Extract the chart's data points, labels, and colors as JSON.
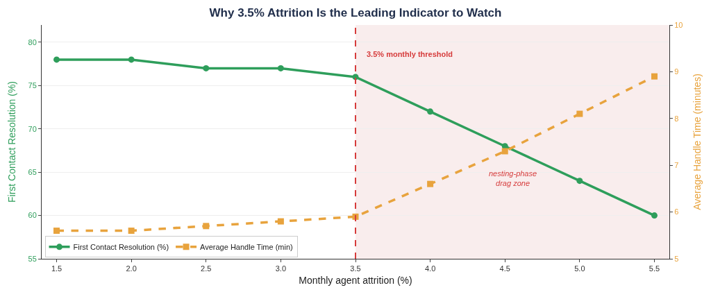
{
  "chart_data": {
    "type": "line",
    "title": "Why 3.5% Attrition Is the Leading Indicator to Watch",
    "xlabel": "Monthly agent attrition (%)",
    "ylabel": "First Contact Resolution (%)",
    "y2label": "Average Handle Time (minutes)",
    "x": [
      1.5,
      2.0,
      2.5,
      3.0,
      3.5,
      4.0,
      4.5,
      5.0,
      5.5
    ],
    "series": [
      {
        "name": "First Contact Resolution (%)",
        "color": "#2e9e5b",
        "values": [
          78,
          78,
          77,
          77,
          76,
          72,
          68,
          64,
          60
        ],
        "marker": "circle",
        "line_style": "solid"
      },
      {
        "name": "Average Handle Time (min)",
        "color": "#e8a33d",
        "values": [
          5.6,
          5.6,
          5.7,
          5.8,
          5.9,
          6.6,
          7.3,
          8.1,
          8.9
        ],
        "axis": "y2",
        "marker": "square",
        "line_style": "dashed"
      }
    ],
    "xlim": [
      1.4,
      5.6
    ],
    "xticks": [
      {
        "value": 1.5,
        "label": "1.5"
      },
      {
        "value": 2.0,
        "label": "2.0"
      },
      {
        "value": 2.5,
        "label": "2.5"
      },
      {
        "value": 3.0,
        "label": "3.0"
      },
      {
        "value": 3.5,
        "label": "3.5"
      },
      {
        "value": 4.0,
        "label": "4.0"
      },
      {
        "value": 4.5,
        "label": "4.5"
      },
      {
        "value": 5.0,
        "label": "5.0"
      },
      {
        "value": 5.5,
        "label": "5.5"
      }
    ],
    "ylim": [
      55,
      82
    ],
    "yticks": [
      55,
      60,
      65,
      70,
      75,
      80
    ],
    "y2lim": [
      5,
      10
    ],
    "y2ticks": [
      5,
      6,
      7,
      8,
      9,
      10
    ],
    "ref_lines": [
      {
        "axis": "x",
        "value": 3.5,
        "label": "3.5% monthly threshold",
        "color": "#d63c3c",
        "line_style": "dashed"
      }
    ],
    "bands": [
      {
        "axis": "x",
        "from": 3.5,
        "to": 5.6,
        "label": "nesting-phase\ndrag zone",
        "color": "#f9eded"
      }
    ],
    "grid": "y",
    "legend": "bottom left"
  }
}
